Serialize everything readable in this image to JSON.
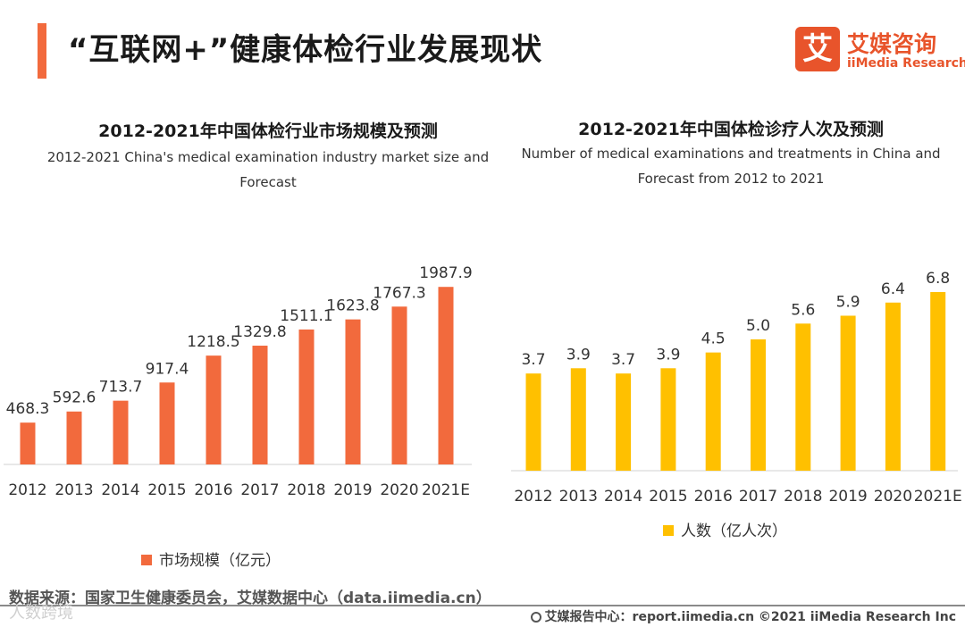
{
  "page": {
    "title": "“互联网+”健康体检行业发展现状",
    "accent_color": "#f26a3d"
  },
  "brand": {
    "mark": "艾",
    "name_cn": "艾媒咨询",
    "name_en": "iiMedia Research",
    "color": "#e8542b"
  },
  "chart_data": [
    {
      "type": "bar",
      "title": "2012-2021年中国体检行业市场规模及预测",
      "subtitle_lines": [
        "2012-2021 China's medical examination industry market size and",
        "Forecast"
      ],
      "categories": [
        "2012",
        "2013",
        "2014",
        "2015",
        "2016",
        "2017",
        "2018",
        "2019",
        "2020",
        "2021E"
      ],
      "series": [
        {
          "name": "市场规模（亿元）",
          "color": "#f26a3d",
          "values": [
            468.3,
            592.6,
            713.7,
            917.4,
            1218.5,
            1329.8,
            1511.1,
            1623.8,
            1767.3,
            1987.9
          ],
          "labels": [
            "468.3",
            "592.6",
            "713.7",
            "917.4",
            "1218.5",
            "1329.8",
            "1511.1",
            "1623.8",
            "1767.3",
            "1987.9"
          ]
        }
      ],
      "ylim": [
        0,
        2000
      ],
      "grid": false,
      "legend": "bottom"
    },
    {
      "type": "bar",
      "title": "2012-2021年中国体检诊疗人次及预测",
      "subtitle_lines": [
        "Number of medical examinations and treatments in China and",
        "Forecast from 2012 to 2021"
      ],
      "categories": [
        "2012",
        "2013",
        "2014",
        "2015",
        "2016",
        "2017",
        "2018",
        "2019",
        "2020",
        "2021E"
      ],
      "series": [
        {
          "name": "人数（亿人次）",
          "color": "#ffc000",
          "values": [
            3.7,
            3.9,
            3.7,
            3.9,
            4.5,
            5.0,
            5.6,
            5.9,
            6.4,
            6.8
          ],
          "labels": [
            "3.7",
            "3.9",
            "3.7",
            "3.9",
            "4.5",
            "5.0",
            "5.6",
            "5.9",
            "6.4",
            "6.8"
          ]
        }
      ],
      "ylim": [
        0,
        8.5
      ],
      "grid": false,
      "legend": "bottom"
    }
  ],
  "footer": {
    "source": "数据来源：国家卫生健康委员会，艾媒数据中心（data.iimedia.cn）",
    "watermark": "人数跨境",
    "right_text": "艾媒报告中心：report.iimedia.cn   ©2021  iiMedia Research  Inc"
  }
}
